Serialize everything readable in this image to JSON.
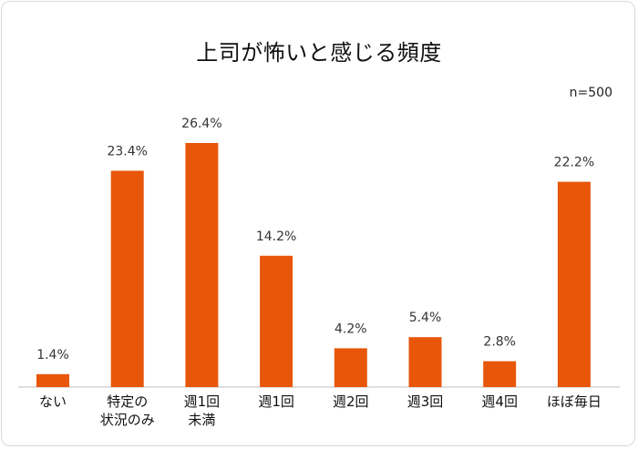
{
  "title": "上司が怖いと感じる頻度",
  "sample_note": "n=500",
  "colors": {
    "bar": "#e8560a",
    "axis": "#bfbfbf"
  },
  "chart_data": {
    "type": "bar",
    "title": "上司が怖いと感じる頻度",
    "categories": [
      "ない",
      "特定の\n状況のみ",
      "週1回\n未満",
      "週1回",
      "週2回",
      "週3回",
      "週4回",
      "ほぼ毎日"
    ],
    "values": [
      1.4,
      23.4,
      26.4,
      14.2,
      4.2,
      5.4,
      2.8,
      22.2
    ],
    "value_labels": [
      "1.4%",
      "23.4%",
      "26.4%",
      "14.2%",
      "4.2%",
      "5.4%",
      "2.8%",
      "22.2%"
    ],
    "xlabel": "",
    "ylabel": "",
    "ylim": [
      0,
      26.4
    ],
    "grid": false,
    "legend": "none"
  }
}
